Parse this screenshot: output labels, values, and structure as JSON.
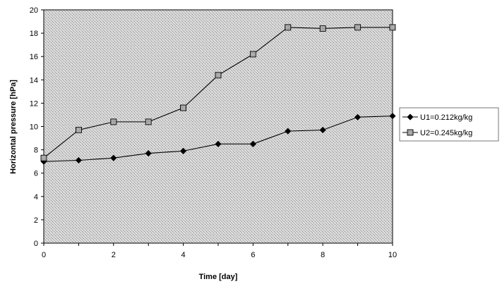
{
  "chart_data": {
    "type": "line",
    "title": "",
    "xlabel": "Time [day]",
    "ylabel": "Horizontal pressure [hPa]",
    "xlim": [
      0,
      10
    ],
    "ylim": [
      0,
      20
    ],
    "xticks": [
      0,
      2,
      4,
      6,
      8,
      10
    ],
    "yticks": [
      0,
      2,
      4,
      6,
      8,
      10,
      12,
      14,
      16,
      18,
      20
    ],
    "grid": false,
    "legend_position": "right",
    "plot_background": "stippled gray",
    "x": [
      0,
      1,
      2,
      3,
      4,
      5,
      6,
      7,
      8,
      9,
      10
    ],
    "series": [
      {
        "name": "U1=0.212kg/kg",
        "marker": "diamond",
        "color": "#000000",
        "values": [
          7.0,
          7.1,
          7.3,
          7.7,
          7.9,
          8.5,
          8.5,
          9.6,
          9.7,
          10.8,
          10.9
        ]
      },
      {
        "name": "U2=0.245kg/kg",
        "marker": "square",
        "color": "#000000",
        "values": [
          7.3,
          9.7,
          10.4,
          10.4,
          11.6,
          14.4,
          16.2,
          18.5,
          18.4,
          18.5,
          18.5
        ]
      }
    ]
  }
}
